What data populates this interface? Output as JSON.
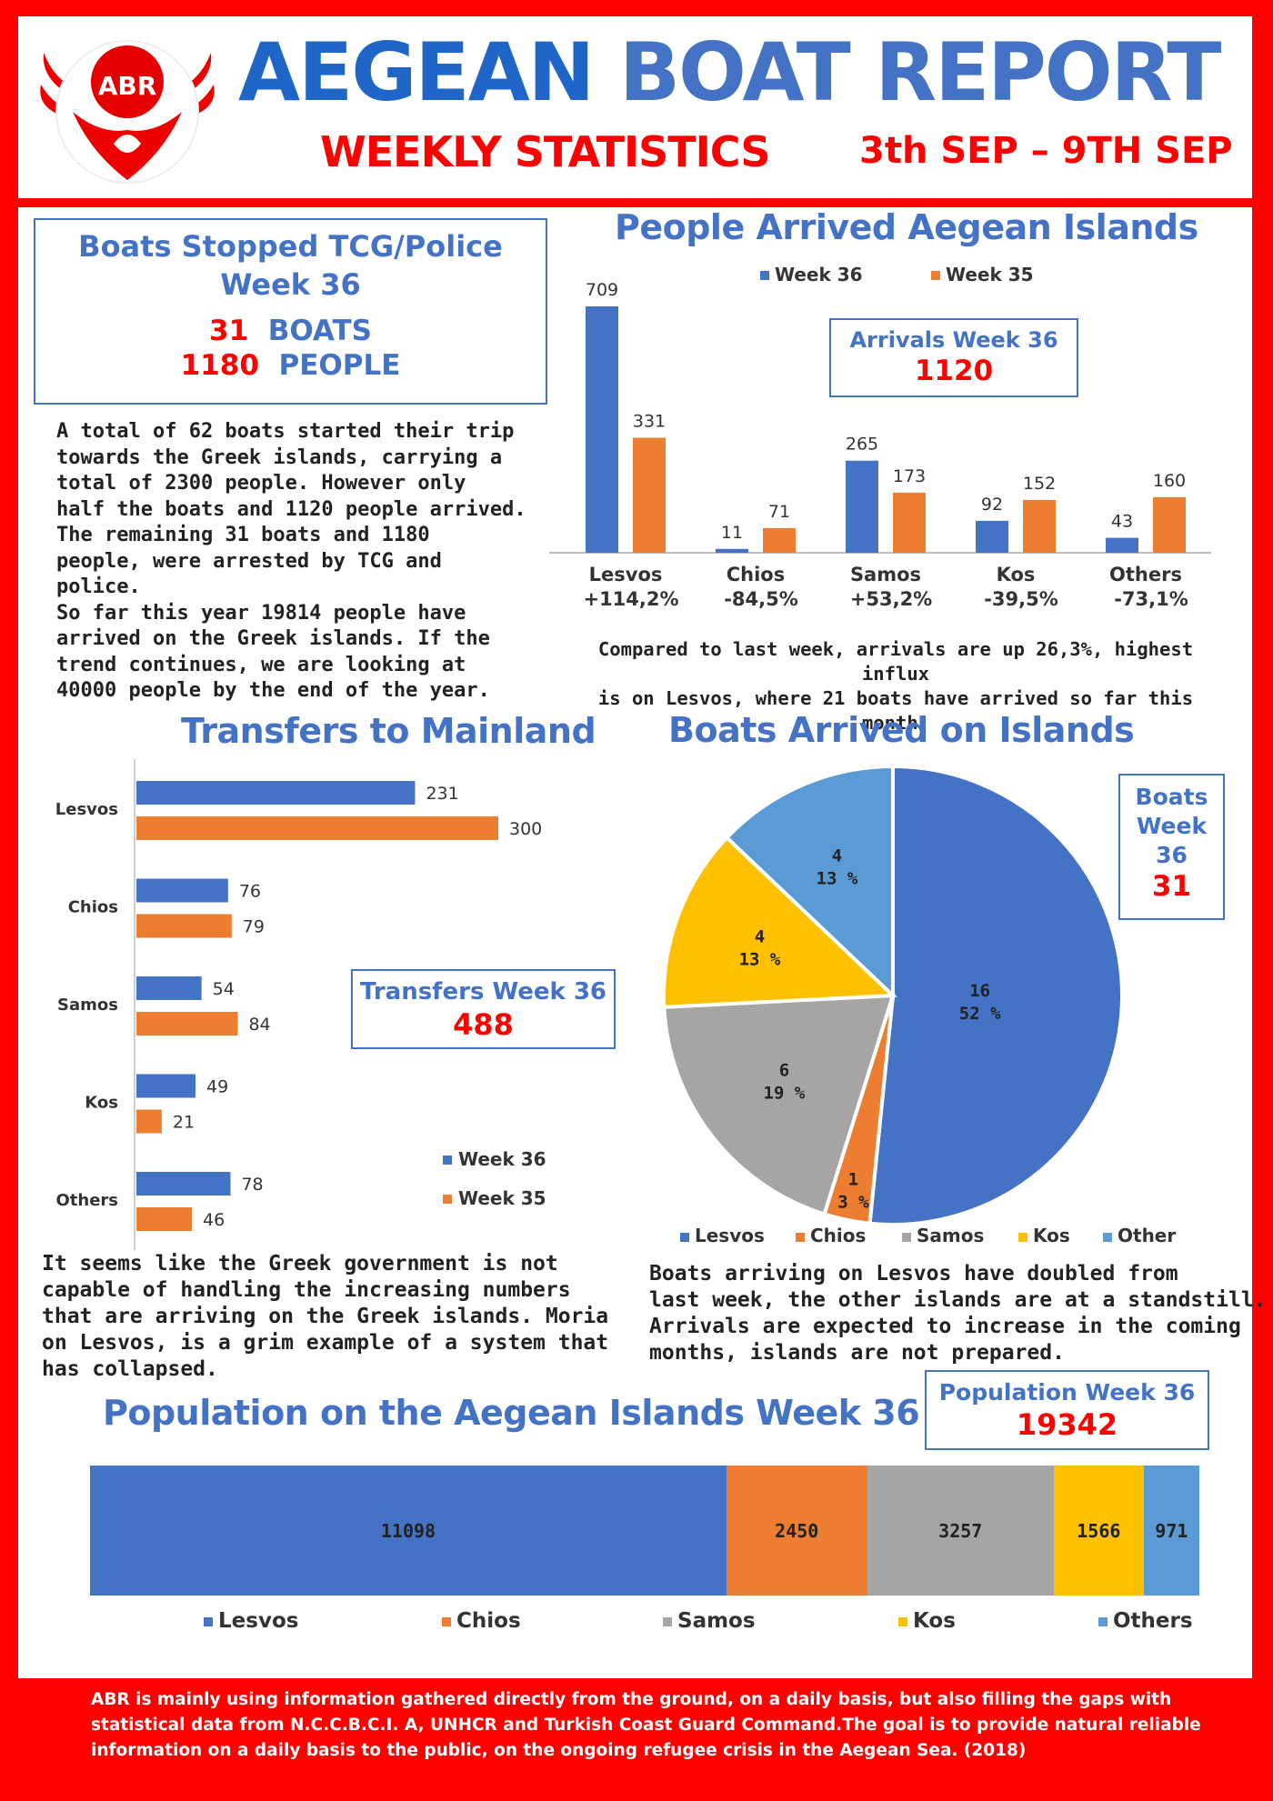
{
  "header": {
    "logo_ring_text": "AEGEAN BOAT REPORT",
    "logo_abbr": "ABR",
    "title_part1": "AEGEAN",
    "title_part2": "BOAT REPORT",
    "subtitle": "WEEKLY STATISTICS",
    "date_range": "3th SEP – 9TH SEP"
  },
  "stopped": {
    "title_line1": "Boats Stopped TCG/Police",
    "title_line2": "Week 36",
    "boats_count": "31",
    "boats_label": "BOATS",
    "people_count": "1180",
    "people_label": "PEOPLE"
  },
  "summary_text": [
    "A total of 62 boats started their trip",
    "towards the Greek islands, carrying a",
    "total of 2300 people. However only",
    "half the boats and 1120 people arrived.",
    "The remaining 31 boats and 1180",
    "people, were arrested by TCG and",
    "police.",
    "So far this year 19814 people have",
    "arrived on the Greek islands. If the",
    "trend continues, we are looking at",
    "40000 people by the end of the year."
  ],
  "arrivals_box": {
    "label": "Arrivals Week 36",
    "value": "1120"
  },
  "arrivals_note": [
    "Compared to last week, arrivals are up 26,3%, highest influx",
    "is on Lesvos, where 21 boats have arrived so far this month."
  ],
  "transfers_box": {
    "label": "Transfers Week 36",
    "value": "488"
  },
  "boats_box": {
    "line1": "Boats",
    "line2": "Week",
    "line3": "36",
    "value": "31"
  },
  "government_text": [
    "It seems like the Greek government is not",
    "capable of handling the increasing numbers",
    "that are arriving on the Greek islands. Moria",
    "on Lesvos, is a grim example of a system that",
    "has collapsed."
  ],
  "lesvos_text": [
    "Boats arriving on Lesvos have doubled from",
    "last week, the other islands are at a standstill.",
    "Arrivals are expected to increase in the coming",
    "months, islands are not prepared."
  ],
  "population_box": {
    "label": "Population Week 36",
    "value": "19342"
  },
  "footer_text": [
    "ABR is mainly using information gathered directly from the ground, on a daily basis, but also filling the gaps with",
    "statistical data from N.C.C.B.C.I. A, UNHCR and Turkish Coast Guard Command.The goal is to provide natural reliable",
    "information on a daily basis to the public, on the ongoing refugee crisis in the Aegean Sea. (2018)"
  ],
  "colors": {
    "blue": "#4472c4",
    "orange": "#ed7d31",
    "gray": "#a5a5a5",
    "yellow": "#ffc000",
    "lightblue": "#5b9bd5",
    "red": "#ff0000"
  },
  "chart_data": [
    {
      "type": "bar",
      "title": "People Arrived Aegean Islands",
      "categories": [
        "Lesvos",
        "Chios",
        "Samos",
        "Kos",
        "Others"
      ],
      "change_labels": [
        "+114,2%",
        "-84,5%",
        "+53,2%",
        "-39,5%",
        "-73,1%"
      ],
      "series": [
        {
          "name": "Week 36",
          "values": [
            709,
            11,
            265,
            92,
            43
          ]
        },
        {
          "name": "Week 35",
          "values": [
            331,
            71,
            173,
            152,
            160
          ]
        }
      ],
      "ylim": [
        0,
        709
      ]
    },
    {
      "type": "bar",
      "orientation": "horizontal",
      "title": "Transfers to Mainland",
      "categories": [
        "Lesvos",
        "Chios",
        "Samos",
        "Kos",
        "Others"
      ],
      "series": [
        {
          "name": "Week 36",
          "values": [
            231,
            76,
            54,
            49,
            78
          ]
        },
        {
          "name": "Week 35",
          "values": [
            300,
            79,
            84,
            21,
            46
          ]
        }
      ],
      "xlim": [
        0,
        300
      ]
    },
    {
      "type": "pie",
      "title": "Boats Arrived on Islands",
      "labels": [
        "Lesvos",
        "Chios",
        "Samos",
        "Kos",
        "Other"
      ],
      "values": [
        16,
        1,
        6,
        4,
        4
      ],
      "percent_labels": [
        "52 %",
        "3 %",
        "19 %",
        "13 %",
        "13 %"
      ]
    },
    {
      "type": "bar",
      "orientation": "stacked-horizontal",
      "title": "Population on the Aegean Islands Week 36",
      "categories": [
        "Lesvos",
        "Chios",
        "Samos",
        "Kos",
        "Others"
      ],
      "values": [
        11098,
        2450,
        3257,
        1566,
        971
      ]
    }
  ]
}
